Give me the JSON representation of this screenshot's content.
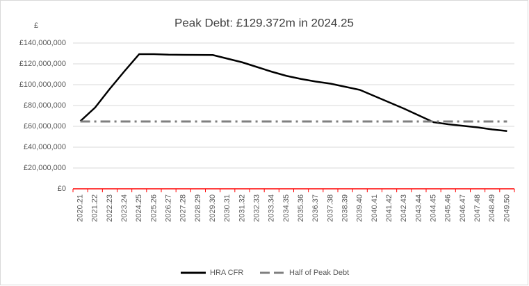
{
  "chart_data": {
    "type": "line",
    "title": "Peak Debt: £129.372m in 2024.25",
    "ylabel": "£",
    "categories": [
      "2020.21",
      "2021.22",
      "2022.23",
      "2023.24",
      "2024.25",
      "2025.26",
      "2026.27",
      "2027.28",
      "2028.29",
      "2029.30",
      "2030.31",
      "2031.32",
      "2032.33",
      "2033.34",
      "2034.35",
      "2035.36",
      "2036.37",
      "2037.38",
      "2038.39",
      "2039.40",
      "2040.41",
      "2041.42",
      "2042.43",
      "2043.44",
      "2044.45",
      "2045.46",
      "2046.47",
      "2047.48",
      "2048.49",
      "2049.50"
    ],
    "series": [
      {
        "name": "HRA CFR",
        "color": "#000000",
        "values": [
          65000000,
          78000000,
          96000000,
          113000000,
          129372000,
          129300000,
          128800000,
          128700000,
          128600000,
          128500000,
          125000000,
          121500000,
          117000000,
          112500000,
          108500000,
          105500000,
          103000000,
          101000000,
          98000000,
          95000000,
          89000000,
          83000000,
          77000000,
          70500000,
          64000000,
          62000000,
          60500000,
          59000000,
          57000000,
          55500000
        ]
      },
      {
        "name": "Half of Peak Debt",
        "color": "#7f7f7f",
        "dash": "dash-dot",
        "values": [
          64686000,
          64686000,
          64686000,
          64686000,
          64686000,
          64686000,
          64686000,
          64686000,
          64686000,
          64686000,
          64686000,
          64686000,
          64686000,
          64686000,
          64686000,
          64686000,
          64686000,
          64686000,
          64686000,
          64686000,
          64686000,
          64686000,
          64686000,
          64686000,
          64686000,
          64686000,
          64686000,
          64686000,
          64686000,
          64686000
        ]
      }
    ],
    "ylim": [
      0,
      140000000
    ],
    "yticks": [
      {
        "value": 0,
        "label": "£0"
      },
      {
        "value": 20000000,
        "label": "£20,000,000"
      },
      {
        "value": 40000000,
        "label": "£40,000,000"
      },
      {
        "value": 60000000,
        "label": "£60,000,000"
      },
      {
        "value": 80000000,
        "label": "£80,000,000"
      },
      {
        "value": 100000000,
        "label": "£100,000,000"
      },
      {
        "value": 120000000,
        "label": "£120,000,000"
      },
      {
        "value": 140000000,
        "label": "£140,000,000"
      }
    ],
    "grid": true,
    "legend": "bottom",
    "xaxis_color": "#ff0000"
  }
}
